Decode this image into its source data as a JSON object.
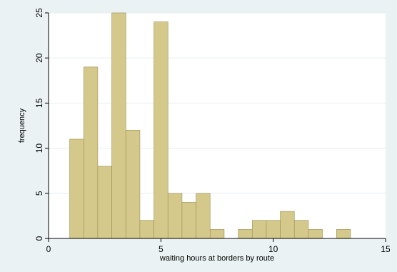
{
  "chart_data": {
    "type": "bar",
    "title": "",
    "xlabel": "waiting hours at borders by route",
    "ylabel": "frequency",
    "xlim": [
      0,
      15
    ],
    "ylim": [
      0,
      25
    ],
    "x_ticks": [
      0,
      5,
      10,
      15
    ],
    "y_ticks": [
      0,
      5,
      10,
      15,
      20,
      25
    ],
    "grid": "horizontal",
    "bin_width": 0.625,
    "bins": [
      {
        "x0": 0.94,
        "value": 11
      },
      {
        "x0": 1.565,
        "value": 19
      },
      {
        "x0": 2.19,
        "value": 8
      },
      {
        "x0": 2.815,
        "value": 25
      },
      {
        "x0": 3.44,
        "value": 12
      },
      {
        "x0": 4.065,
        "value": 2
      },
      {
        "x0": 4.69,
        "value": 24
      },
      {
        "x0": 5.315,
        "value": 5
      },
      {
        "x0": 5.94,
        "value": 4
      },
      {
        "x0": 6.565,
        "value": 5
      },
      {
        "x0": 7.19,
        "value": 1
      },
      {
        "x0": 7.815,
        "value": 0
      },
      {
        "x0": 8.44,
        "value": 1
      },
      {
        "x0": 9.065,
        "value": 2
      },
      {
        "x0": 9.69,
        "value": 2
      },
      {
        "x0": 10.315,
        "value": 3
      },
      {
        "x0": 10.94,
        "value": 2
      },
      {
        "x0": 11.565,
        "value": 1
      },
      {
        "x0": 12.19,
        "value": 0
      },
      {
        "x0": 12.815,
        "value": 1
      }
    ],
    "colors": {
      "bar_fill": "#d4c88a",
      "bar_stroke": "#9a8f55",
      "background": "#eaf2f3",
      "plot_region": "#ffffff",
      "gridline": "#e6eef0"
    }
  }
}
